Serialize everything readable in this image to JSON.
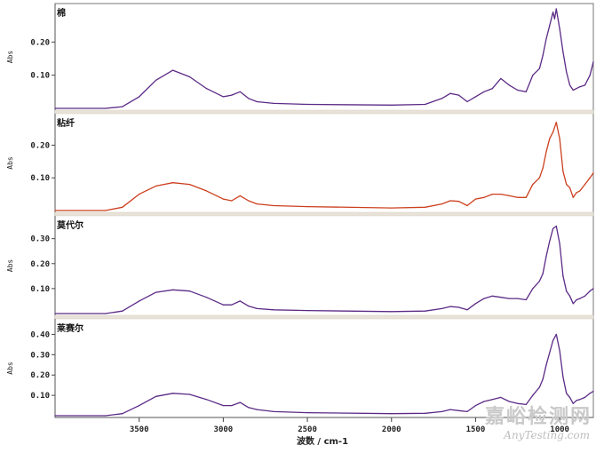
{
  "chart_data": [
    {
      "type": "line",
      "name": "棉",
      "color": "#5b2a86",
      "ylabel": "Abs",
      "yticks": [
        0.1,
        0.2
      ],
      "ylim": [
        0.0,
        0.3
      ],
      "x": [
        4000,
        3700,
        3600,
        3500,
        3400,
        3300,
        3200,
        3100,
        3000,
        2950,
        2900,
        2850,
        2800,
        2700,
        2500,
        2000,
        1800,
        1700,
        1650,
        1600,
        1550,
        1500,
        1450,
        1400,
        1350,
        1300,
        1250,
        1200,
        1160,
        1120,
        1100,
        1080,
        1060,
        1040,
        1030,
        1020,
        1000,
        980,
        960,
        940,
        920,
        900,
        880,
        850,
        820,
        800
      ],
      "y": [
        0.0,
        0.0,
        0.005,
        0.035,
        0.085,
        0.115,
        0.095,
        0.06,
        0.035,
        0.04,
        0.05,
        0.03,
        0.02,
        0.015,
        0.012,
        0.01,
        0.012,
        0.03,
        0.045,
        0.04,
        0.02,
        0.035,
        0.05,
        0.06,
        0.09,
        0.07,
        0.055,
        0.05,
        0.1,
        0.12,
        0.16,
        0.21,
        0.25,
        0.29,
        0.27,
        0.3,
        0.24,
        0.17,
        0.11,
        0.07,
        0.055,
        0.06,
        0.065,
        0.07,
        0.1,
        0.14
      ]
    },
    {
      "type": "line",
      "name": "粘纤",
      "color": "#cc3f1e",
      "ylabel": "Abs",
      "yticks": [
        0.1,
        0.2
      ],
      "ylim": [
        0.0,
        0.28
      ],
      "x": [
        4000,
        3700,
        3600,
        3500,
        3400,
        3300,
        3200,
        3100,
        3000,
        2950,
        2900,
        2850,
        2800,
        2700,
        2500,
        2000,
        1800,
        1700,
        1650,
        1600,
        1550,
        1500,
        1450,
        1400,
        1350,
        1300,
        1250,
        1200,
        1160,
        1120,
        1100,
        1080,
        1060,
        1040,
        1020,
        1000,
        980,
        960,
        940,
        920,
        900,
        880,
        850,
        820,
        800
      ],
      "y": [
        0.0,
        0.0,
        0.01,
        0.05,
        0.075,
        0.085,
        0.08,
        0.06,
        0.035,
        0.03,
        0.045,
        0.03,
        0.02,
        0.015,
        0.012,
        0.008,
        0.01,
        0.02,
        0.03,
        0.028,
        0.015,
        0.035,
        0.04,
        0.05,
        0.05,
        0.045,
        0.04,
        0.04,
        0.08,
        0.1,
        0.13,
        0.18,
        0.22,
        0.24,
        0.27,
        0.22,
        0.12,
        0.08,
        0.07,
        0.04,
        0.055,
        0.06,
        0.08,
        0.1,
        0.115
      ]
    },
    {
      "type": "line",
      "name": "莫代尔",
      "color": "#5b2a86",
      "ylabel": "Abs",
      "yticks": [
        0.1,
        0.2,
        0.3
      ],
      "ylim": [
        0.0,
        0.37
      ],
      "x": [
        4000,
        3700,
        3600,
        3500,
        3400,
        3300,
        3200,
        3100,
        3000,
        2950,
        2900,
        2850,
        2800,
        2700,
        2500,
        2000,
        1800,
        1700,
        1650,
        1600,
        1550,
        1500,
        1450,
        1400,
        1350,
        1300,
        1250,
        1200,
        1160,
        1120,
        1100,
        1080,
        1060,
        1040,
        1020,
        1000,
        980,
        960,
        940,
        920,
        900,
        880,
        850,
        820,
        800
      ],
      "y": [
        0.0,
        0.0,
        0.01,
        0.05,
        0.085,
        0.095,
        0.09,
        0.065,
        0.035,
        0.035,
        0.05,
        0.03,
        0.02,
        0.015,
        0.012,
        0.008,
        0.01,
        0.02,
        0.028,
        0.025,
        0.015,
        0.04,
        0.06,
        0.07,
        0.065,
        0.06,
        0.06,
        0.055,
        0.1,
        0.13,
        0.16,
        0.23,
        0.29,
        0.34,
        0.35,
        0.28,
        0.15,
        0.09,
        0.07,
        0.04,
        0.055,
        0.06,
        0.07,
        0.09,
        0.1
      ]
    },
    {
      "type": "line",
      "name": "莱赛尔",
      "color": "#5b2a86",
      "ylabel": "Abs",
      "yticks": [
        0.1,
        0.2,
        0.3,
        0.4
      ],
      "ylim": [
        0.0,
        0.45
      ],
      "x": [
        4000,
        3700,
        3600,
        3500,
        3400,
        3300,
        3200,
        3100,
        3000,
        2950,
        2900,
        2850,
        2800,
        2700,
        2500,
        2000,
        1800,
        1700,
        1650,
        1600,
        1550,
        1500,
        1450,
        1400,
        1350,
        1300,
        1250,
        1200,
        1160,
        1120,
        1100,
        1080,
        1060,
        1040,
        1020,
        1000,
        980,
        960,
        940,
        920,
        900,
        880,
        850,
        820,
        800
      ],
      "y": [
        0.0,
        0.0,
        0.01,
        0.05,
        0.095,
        0.11,
        0.105,
        0.08,
        0.05,
        0.05,
        0.065,
        0.04,
        0.03,
        0.02,
        0.015,
        0.01,
        0.012,
        0.02,
        0.03,
        0.025,
        0.02,
        0.05,
        0.07,
        0.08,
        0.09,
        0.07,
        0.06,
        0.055,
        0.1,
        0.14,
        0.18,
        0.25,
        0.31,
        0.37,
        0.4,
        0.32,
        0.19,
        0.11,
        0.09,
        0.06,
        0.075,
        0.08,
        0.09,
        0.11,
        0.12
      ]
    }
  ],
  "x_axis": {
    "label": "波数 / cm-1",
    "ticks": [
      3500,
      3000,
      2500,
      2000,
      1500,
      1000
    ],
    "range": [
      4000,
      800
    ]
  },
  "watermark": {
    "cn": "嘉峪检测网",
    "en": "AnyTesting.com"
  }
}
